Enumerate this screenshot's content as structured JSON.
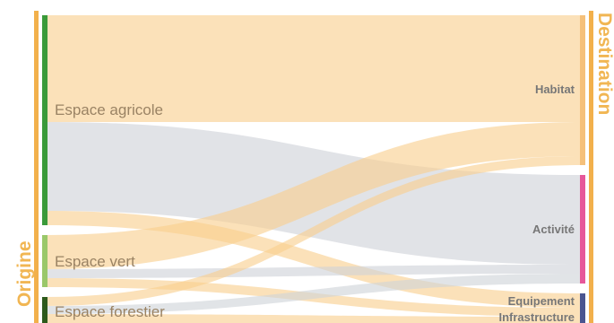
{
  "axes": {
    "left_title": "Origine",
    "right_title": "Destination"
  },
  "colors": {
    "axis": "#f2b04b",
    "flow_agricole": "#f8cf8e",
    "flow_vert": "#ced2d8",
    "flow_forestier": "#cfd3d9",
    "node_agricole": "#3a9a3a",
    "node_vert": "#9ac86a",
    "node_forestier": "#2d5a1c",
    "node_habitat": "#f5c07a",
    "node_activite": "#e6589a",
    "node_equipement": "#4a5590",
    "origin_label": "#9a8364",
    "dest_label": "#777777"
  },
  "origins": [
    {
      "id": "agricole",
      "label": "Espace agricole"
    },
    {
      "id": "vert",
      "label": "Espace vert"
    },
    {
      "id": "forestier",
      "label": "Espace forestier"
    }
  ],
  "destinations": [
    {
      "id": "habitat",
      "label": "Habitat"
    },
    {
      "id": "activite",
      "label": "Activité"
    },
    {
      "id": "equipement",
      "label": "Equipement Infrastructure"
    }
  ],
  "flows": [
    {
      "from": "agricole",
      "to": "habitat"
    },
    {
      "from": "agricole",
      "to": "activite"
    },
    {
      "from": "agricole",
      "to": "equipement"
    },
    {
      "from": "vert",
      "to": "habitat"
    },
    {
      "from": "vert",
      "to": "activite"
    },
    {
      "from": "vert",
      "to": "equipement"
    },
    {
      "from": "forestier",
      "to": "habitat"
    },
    {
      "from": "forestier",
      "to": "activite"
    },
    {
      "from": "forestier",
      "to": "equipement"
    }
  ]
}
